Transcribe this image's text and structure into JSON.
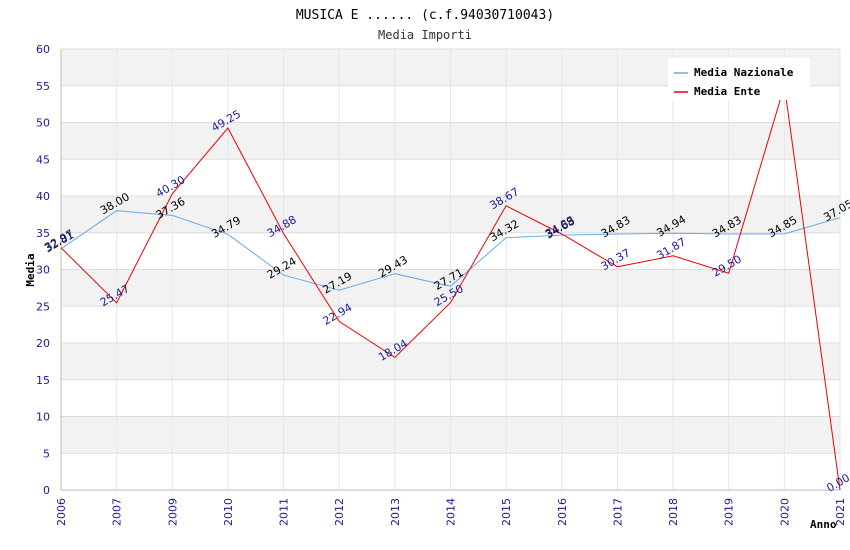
{
  "chart_data": {
    "type": "line",
    "title": "MUSICA E ...... (c.f.94030710043)",
    "subtitle": "Media Importi",
    "ylabel": "Media",
    "xlabel": "Anno",
    "ylim": [
      0,
      60
    ],
    "yticks": [
      "0",
      "5",
      "10",
      "15",
      "20",
      "25",
      "30",
      "35",
      "40",
      "45",
      "50",
      "55",
      "60"
    ],
    "categories": [
      "2006",
      "2007",
      "2009",
      "2010",
      "2011",
      "2012",
      "2013",
      "2014",
      "2015",
      "2016",
      "2017",
      "2018",
      "2019",
      "2020",
      "2021"
    ],
    "series": [
      {
        "name": "Media Nazionale",
        "color": "#66aaee",
        "values": [
          32.81,
          38.0,
          37.36,
          34.79,
          29.24,
          27.19,
          29.43,
          27.71,
          34.32,
          34.68,
          34.83,
          34.94,
          34.83,
          34.85,
          37.05
        ],
        "labels": [
          "32.81",
          "38.00",
          "37.36",
          "34.79",
          "29.24",
          "27.19",
          "29.43",
          "27.71",
          "34.32",
          "34.68",
          "34.83",
          "34.94",
          "34.83",
          "34.85",
          "37.05"
        ]
      },
      {
        "name": "Media Ente",
        "color": "#ee0000",
        "values": [
          32.97,
          25.47,
          40.3,
          49.25,
          34.88,
          22.94,
          18.04,
          25.5,
          38.67,
          34.83,
          30.37,
          31.87,
          29.5,
          55.0,
          0.0
        ],
        "labels": [
          "32.97",
          "25.47",
          "40.30",
          "49.25",
          "34.88",
          "22.94",
          "18.04",
          "25.50",
          "38.67",
          "34.83",
          "30.37",
          "31.87",
          "29.50",
          "",
          "0.00"
        ]
      }
    ],
    "legend_position": "top-right",
    "grid": true
  }
}
